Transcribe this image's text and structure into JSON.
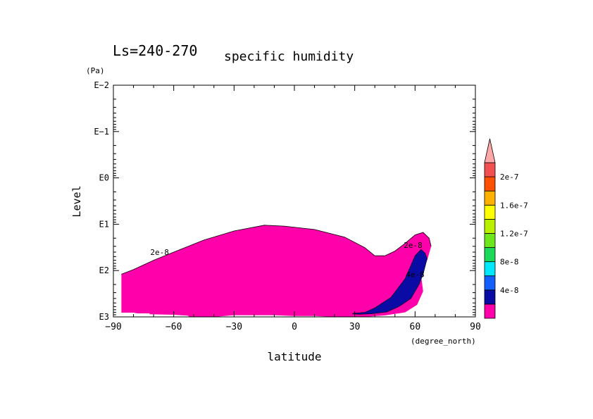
{
  "chart_data": {
    "type": "contour",
    "title_prefix": "Ls=240-270",
    "title": "specific humidity",
    "xlabel": "latitude",
    "x_units": "(degree_north)",
    "ylabel": "Level",
    "y_units": "(Pa)",
    "xlim": [
      -90,
      90
    ],
    "x_ticks": [
      -90,
      -60,
      -30,
      0,
      30,
      60,
      90
    ],
    "x_tick_labels": [
      "−90",
      "−60",
      "−30",
      "0",
      "30",
      "60",
      "90"
    ],
    "y_scale": "log",
    "ylim_pa": [
      1000,
      0.01
    ],
    "y_ticks_pa": [
      0.01,
      0.1,
      1,
      10,
      100,
      1000
    ],
    "y_tick_labels": [
      "E−2",
      "E−1",
      "E0",
      "E1",
      "E2",
      "E3"
    ],
    "contour_labels": [
      {
        "text": "2e-8",
        "lat": -67,
        "p": 40
      },
      {
        "text": "2e-8",
        "lat": 59,
        "p": 28
      },
      {
        "text": "4e-8",
        "lat": 60,
        "p": 120
      }
    ],
    "filled_regions": [
      {
        "level": "2e-8 to 4e-8",
        "color": "#ff00aa",
        "outline": [
          [
            -86,
            120
          ],
          [
            -80,
            95
          ],
          [
            -70,
            60
          ],
          [
            -60,
            40
          ],
          [
            -45,
            22
          ],
          [
            -30,
            14
          ],
          [
            -15,
            10.5
          ],
          [
            -5,
            11
          ],
          [
            10,
            13
          ],
          [
            25,
            19
          ],
          [
            35,
            32
          ],
          [
            40,
            48
          ],
          [
            45,
            48
          ],
          [
            50,
            38
          ],
          [
            55,
            26
          ],
          [
            60,
            17
          ],
          [
            64,
            15
          ],
          [
            67,
            20
          ],
          [
            68,
            30
          ],
          [
            66,
            60
          ],
          [
            63,
            130
          ],
          [
            64,
            280
          ],
          [
            61,
            550
          ],
          [
            55,
            800
          ],
          [
            45,
            930
          ],
          [
            35,
            1000
          ],
          [
            20,
            1000
          ],
          [
            10,
            960
          ],
          [
            0,
            960
          ],
          [
            -10,
            920
          ],
          [
            -30,
            920
          ],
          [
            -40,
            1000
          ],
          [
            -52,
            1000
          ],
          [
            -53,
            940
          ],
          [
            -60,
            900
          ],
          [
            -72,
            880
          ],
          [
            -72,
            840
          ],
          [
            -78,
            840
          ],
          [
            -80,
            810
          ],
          [
            -86,
            810
          ]
        ]
      },
      {
        "level": "4e-8 to 6e-8",
        "color": "#0a0aa5",
        "outline": [
          [
            29,
            840
          ],
          [
            35,
            800
          ],
          [
            40,
            640
          ],
          [
            48,
            380
          ],
          [
            55,
            150
          ],
          [
            60,
            48
          ],
          [
            63,
            35
          ],
          [
            65,
            42
          ],
          [
            66,
            55
          ],
          [
            64,
            120
          ],
          [
            62,
            200
          ],
          [
            58,
            400
          ],
          [
            52,
            600
          ],
          [
            46,
            780
          ],
          [
            38,
            860
          ],
          [
            32,
            880
          ],
          [
            29,
            860
          ]
        ]
      }
    ],
    "colorbar": {
      "bands": [
        {
          "color": "#ff00aa"
        },
        {
          "color": "#0a0aa5"
        },
        {
          "color": "#1460ff"
        },
        {
          "color": "#00e8ff"
        },
        {
          "color": "#1bd85a"
        },
        {
          "color": "#6ee61c"
        },
        {
          "color": "#b8f000"
        },
        {
          "color": "#ffff00"
        },
        {
          "color": "#ffb000"
        },
        {
          "color": "#ff5000"
        },
        {
          "color": "#f25050"
        }
      ],
      "extend_color": "#ffa8a8",
      "labels": [
        {
          "text": "4e-8",
          "after_band": 1
        },
        {
          "text": "8e-8",
          "after_band": 3
        },
        {
          "text": "1.2e-7",
          "after_band": 5
        },
        {
          "text": "1.6e-7",
          "after_band": 7
        },
        {
          "text": "2e-7",
          "after_band": 9
        }
      ]
    }
  }
}
